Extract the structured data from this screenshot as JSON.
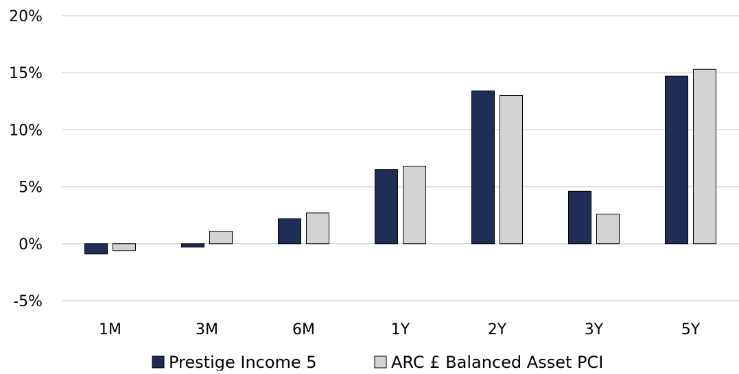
{
  "chart_data": {
    "type": "bar",
    "categories": [
      "1M",
      "3M",
      "6M",
      "1Y",
      "2Y",
      "3Y",
      "5Y"
    ],
    "series": [
      {
        "name": "Prestige Income 5",
        "color": "#1f2d57",
        "values": [
          -0.9,
          -0.3,
          2.2,
          6.5,
          13.4,
          4.6,
          14.7
        ]
      },
      {
        "name": "ARC £ Balanced Asset PCI",
        "color": "#d3d3d3",
        "values": [
          -0.6,
          1.1,
          2.7,
          6.8,
          13.0,
          2.6,
          15.3
        ]
      }
    ],
    "title": "",
    "xlabel": "",
    "ylabel": "",
    "ylim": [
      -5,
      20
    ],
    "yticks": [
      -5,
      0,
      5,
      10,
      15,
      20
    ],
    "ytick_labels": [
      "-5%",
      "0%",
      "5%",
      "10%",
      "15%",
      "20%"
    ],
    "grid": "horizontal",
    "legend_position": "bottom"
  }
}
